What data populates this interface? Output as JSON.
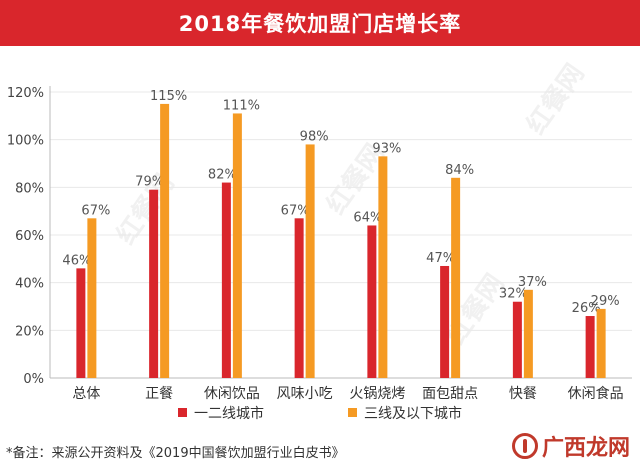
{
  "title": "2018年餐饮加盟门店增长率",
  "note": "*备注：来源公开资料及《2019中国餐饮加盟行业白皮书》",
  "brand": "广西龙网",
  "watermark": "红餐网",
  "colors": {
    "banner": "#d9262c",
    "series1": "#d9262c",
    "series2": "#f59a23",
    "axis": "#666666",
    "grid": "#e8e8e8"
  },
  "chart_data": {
    "type": "bar",
    "categories": [
      "总体",
      "正餐",
      "休闲饮品",
      "风味小吃",
      "火锅烧烤",
      "面包甜点",
      "快餐",
      "休闲食品"
    ],
    "series": [
      {
        "name": "一二线城市",
        "values": [
          46,
          79,
          82,
          67,
          64,
          47,
          32,
          26
        ]
      },
      {
        "name": "三线及以下城市",
        "values": [
          67,
          115,
          111,
          98,
          93,
          84,
          37,
          29
        ]
      }
    ],
    "value_labels": [
      [
        "46%",
        "79%",
        "82%",
        "67%",
        "64%",
        "47%",
        "32%",
        "26%"
      ],
      [
        "67%",
        "115%",
        "111%",
        "98%",
        "93%",
        "84%",
        "37%",
        "29%"
      ]
    ],
    "y_ticks": [
      "0%",
      "20%",
      "40%",
      "60%",
      "80%",
      "100%",
      "120%"
    ],
    "y_tick_values": [
      0,
      20,
      40,
      60,
      80,
      100,
      120
    ],
    "ylim": [
      0,
      120
    ],
    "grid": true,
    "legend_position": "bottom"
  }
}
